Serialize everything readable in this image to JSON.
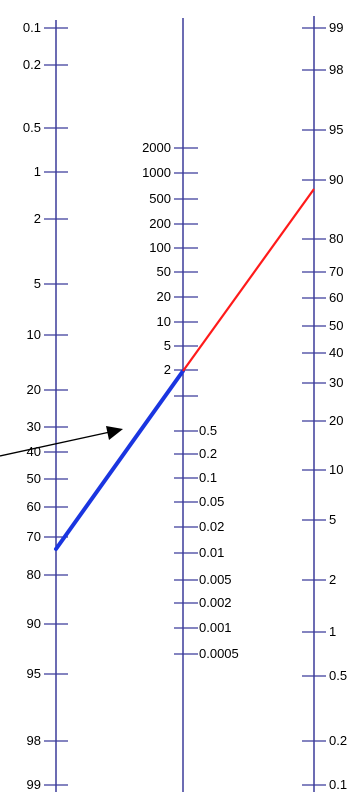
{
  "colors": {
    "axis": "#3b3b9a",
    "lower_line": "#1a35e0",
    "upper_line": "#ff1a1a",
    "arrow": "#000000"
  },
  "left_scale": {
    "labels": [
      "0.1",
      "0.2",
      "0.5",
      "1",
      "2",
      "5",
      "10",
      "20",
      "30",
      "40",
      "50",
      "60",
      "70",
      "80",
      "90",
      "95",
      "98",
      "99"
    ]
  },
  "middle_scale": {
    "upper_labels": [
      "2000",
      "1000",
      "500",
      "200",
      "100",
      "50",
      "20",
      "10",
      "5",
      "2"
    ],
    "lower_labels": [
      "0.5",
      "0.2",
      "0.1",
      "0.05",
      "0.02",
      "0.01",
      "0.005",
      "0.002",
      "0.001",
      "0.0005"
    ]
  },
  "right_scale": {
    "labels": [
      "99",
      "98",
      "95",
      "90",
      "80",
      "70",
      "60",
      "50",
      "40",
      "30",
      "20",
      "10",
      "5",
      "2",
      "1",
      "0.5",
      "0.2",
      "0.1"
    ]
  }
}
